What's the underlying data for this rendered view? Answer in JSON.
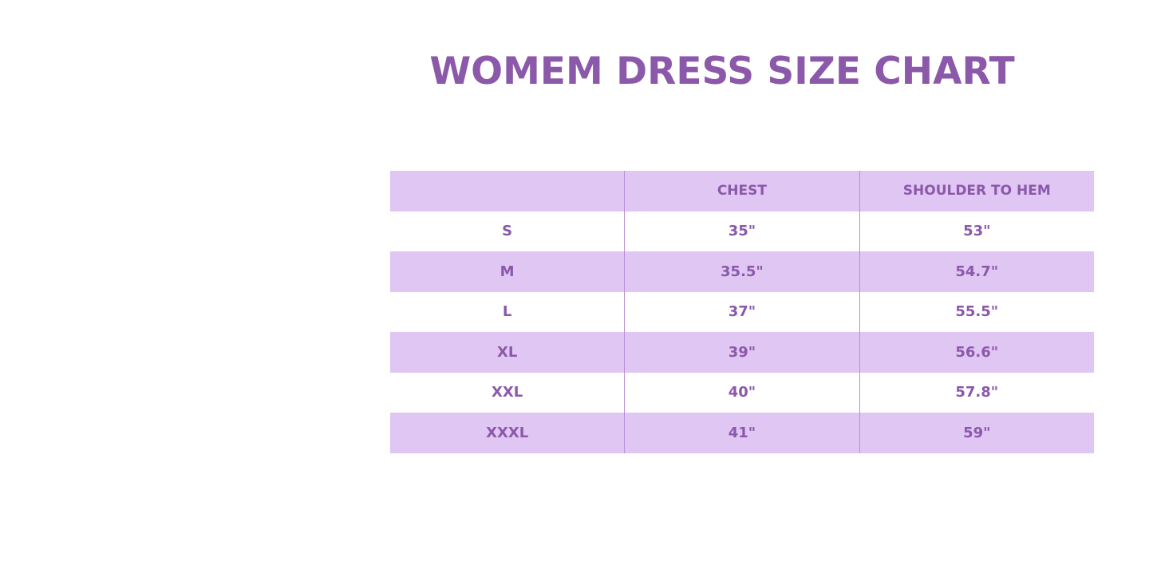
{
  "title": "WOMEM DRESS SIZE CHART",
  "colors": {
    "accent": "#8b58aa",
    "row_fill": "#e0c6f3"
  },
  "table": {
    "headers": [
      "",
      "CHEST",
      "SHOULDER TO HEM"
    ],
    "rows": [
      [
        "S",
        "35\"",
        "53\""
      ],
      [
        "M",
        "35.5\"",
        "54.7\""
      ],
      [
        "L",
        "37\"",
        "55.5\""
      ],
      [
        "XL",
        "39\"",
        "56.6\""
      ],
      [
        "XXL",
        "40\"",
        "57.8\""
      ],
      [
        "XXXL",
        "41\"",
        "59\""
      ]
    ]
  }
}
